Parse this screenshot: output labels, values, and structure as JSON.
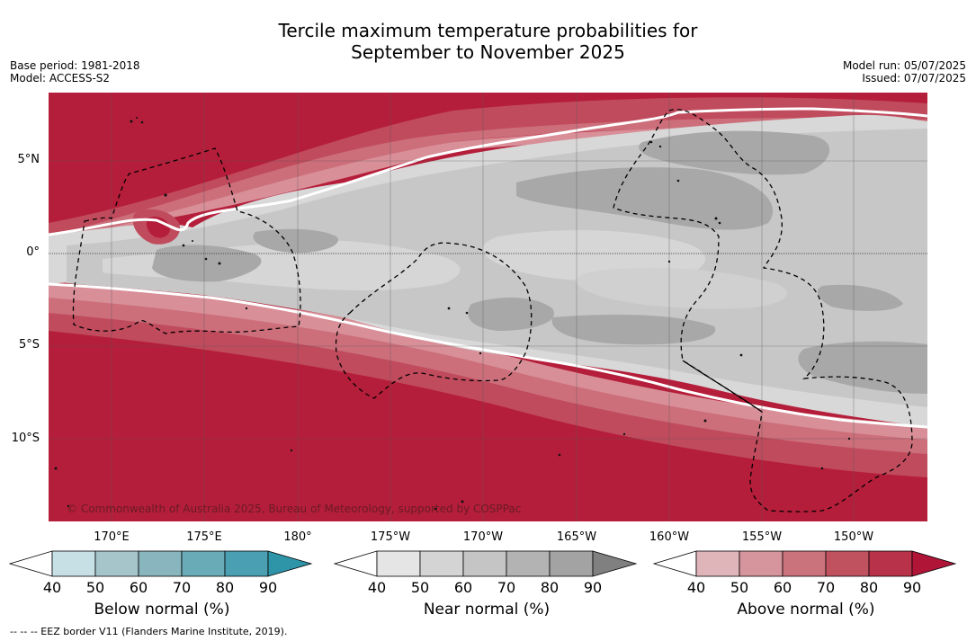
{
  "title_line1": "Tercile maximum temperature probabilities for",
  "title_line2": "September to November 2025",
  "base_period": "Base period: 1981-2018",
  "model": "Model: ACCESS-S2",
  "model_run": "Model run: 05/07/2025",
  "issued": "Issued: 07/07/2025",
  "copyright": "© Commonwealth of Australia 2025, Bureau of Meteorology, supported by COSPPac",
  "footnote": "--  --  -- EEZ border V11 (Flanders Marine Institute, 2019).",
  "lat_labels": [
    "5°N",
    "0°",
    "5°S",
    "10°S"
  ],
  "lon_labels": [
    "170°E",
    "175°E",
    "180°",
    "175°W",
    "170°W",
    "165°W",
    "160°W",
    "155°W",
    "150°W"
  ],
  "colorbars": [
    {
      "label": "Below normal (%)",
      "ticks": [
        "40",
        "50",
        "60",
        "70",
        "80",
        "90"
      ],
      "colors": [
        "#ffffff",
        "#c6e0e6",
        "#a5c5cb",
        "#88b5be",
        "#6aabb8",
        "#4aa0b2",
        "#2e94a8"
      ]
    },
    {
      "label": "Near normal (%)",
      "ticks": [
        "40",
        "50",
        "60",
        "70",
        "80",
        "90"
      ],
      "colors": [
        "#ffffff",
        "#e5e5e5",
        "#d4d4d4",
        "#c5c5c5",
        "#b3b3b3",
        "#a3a3a3",
        "#808080"
      ]
    },
    {
      "label": "Above normal (%)",
      "ticks": [
        "40",
        "50",
        "60",
        "70",
        "80",
        "90"
      ],
      "colors": [
        "#ffffff",
        "#e0b5ba",
        "#d6949c",
        "#cb737d",
        "#c05260",
        "#b83349",
        "#b01538"
      ]
    }
  ],
  "map_colors": {
    "above_90": "#b51e3a",
    "above_80": "#bd3a4f",
    "above_70": "#c55666",
    "above_60": "#cc6f7b",
    "above_50": "#d88f98",
    "near_50": "#d8d8d8",
    "near_60": "#c6c6c6",
    "near_70": "#a8a8a8"
  }
}
